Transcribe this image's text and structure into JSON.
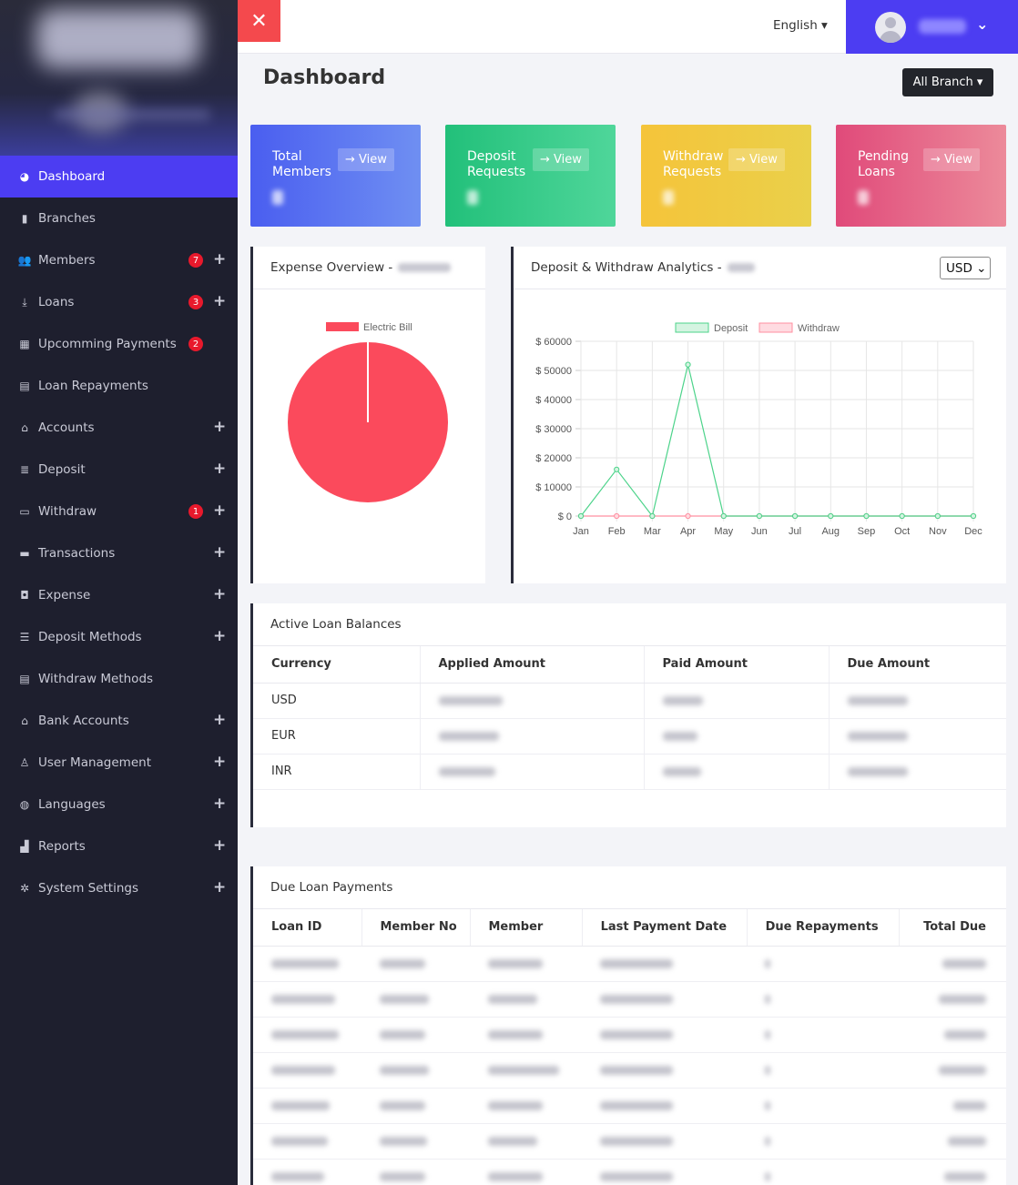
{
  "sidebar": {
    "items": [
      {
        "label": "Dashboard",
        "icon": "dashboard-icon",
        "badge": "",
        "plus": false,
        "active": true
      },
      {
        "label": "Branches",
        "icon": "building-icon",
        "badge": "",
        "plus": false
      },
      {
        "label": "Members",
        "icon": "users-icon",
        "badge": "7",
        "plus": true
      },
      {
        "label": "Loans",
        "icon": "hand-coin-icon",
        "badge": "3",
        "plus": true
      },
      {
        "label": "Upcomming Payments",
        "icon": "calendar-icon",
        "badge": "2",
        "plus": false
      },
      {
        "label": "Loan Repayments",
        "icon": "receipt-icon",
        "badge": "",
        "plus": false
      },
      {
        "label": "Accounts",
        "icon": "bank-icon",
        "badge": "",
        "plus": true
      },
      {
        "label": "Deposit",
        "icon": "coins-icon",
        "badge": "",
        "plus": true
      },
      {
        "label": "Withdraw",
        "icon": "card-icon",
        "badge": "1",
        "plus": true
      },
      {
        "label": "Transactions",
        "icon": "wallet-icon",
        "badge": "",
        "plus": true
      },
      {
        "label": "Expense",
        "icon": "money-icon",
        "badge": "",
        "plus": true
      },
      {
        "label": "Deposit Methods",
        "icon": "list-icon",
        "badge": "",
        "plus": true
      },
      {
        "label": "Withdraw Methods",
        "icon": "receipt-icon",
        "badge": "",
        "plus": false
      },
      {
        "label": "Bank Accounts",
        "icon": "bank-icon",
        "badge": "",
        "plus": true
      },
      {
        "label": "User Management",
        "icon": "user-icon",
        "badge": "",
        "plus": true
      },
      {
        "label": "Languages",
        "icon": "globe-icon",
        "badge": "",
        "plus": true
      },
      {
        "label": "Reports",
        "icon": "bar-chart-icon",
        "badge": "",
        "plus": true
      },
      {
        "label": "System Settings",
        "icon": "gear-icon",
        "badge": "",
        "plus": true
      }
    ],
    "plus_symbol": "+"
  },
  "header": {
    "close_symbol": "✕",
    "language": "English ▾",
    "user_chevron": "⌄"
  },
  "page": {
    "title": "Dashboard",
    "branch_button": "All Branch ▾"
  },
  "cards": [
    {
      "label": "Total Members",
      "view": "→ View",
      "color_from": "#4a5ef0",
      "color_to": "#6f8ff2"
    },
    {
      "label": "Deposit Requests",
      "view": "→ View",
      "color_from": "#22c07a",
      "color_to": "#4fd69a"
    },
    {
      "label": "Withdraw Requests",
      "view": "→ View",
      "color_from": "#f5c43a",
      "color_to": "#ead04a"
    },
    {
      "label": "Pending Loans",
      "view": "→ View",
      "color_from": "#e04a7a",
      "color_to": "#ec8a9a"
    }
  ],
  "expense_panel": {
    "title": "Expense Overview -",
    "legend": "Electric Bill",
    "color": "#fb4a5c"
  },
  "analytics_panel": {
    "title": "Deposit & Withdraw Analytics -",
    "currency": "USD ⌄"
  },
  "chart_data": [
    {
      "type": "pie",
      "title": "Expense Overview",
      "labels": [
        "Electric Bill"
      ],
      "values": [
        100
      ],
      "colors": [
        "#fb4a5c"
      ]
    },
    {
      "type": "line",
      "title": "Deposit & Withdraw Analytics",
      "categories": [
        "Jan",
        "Feb",
        "Mar",
        "Apr",
        "May",
        "Jun",
        "Jul",
        "Aug",
        "Sep",
        "Oct",
        "Nov",
        "Dec"
      ],
      "series": [
        {
          "name": "Deposit",
          "values": [
            0,
            16000,
            0,
            52000,
            0,
            0,
            0,
            0,
            0,
            0,
            0,
            0
          ],
          "color": "#4cd38a"
        },
        {
          "name": "Withdraw",
          "values": [
            0,
            0,
            0,
            0,
            0,
            0,
            0,
            0,
            0,
            0,
            0,
            0
          ],
          "color": "#ff8fa0"
        }
      ],
      "yticks": [
        "$ 0",
        "$ 10000",
        "$ 20000",
        "$ 30000",
        "$ 40000",
        "$ 50000",
        "$ 60000"
      ],
      "ylim": [
        0,
        60000
      ],
      "legend": "top"
    }
  ],
  "loan_balances": {
    "title": "Active Loan Balances",
    "columns": [
      "Currency",
      "Applied Amount",
      "Paid Amount",
      "Due Amount"
    ],
    "rows": [
      {
        "currency": "USD"
      },
      {
        "currency": "EUR"
      },
      {
        "currency": "INR"
      }
    ]
  },
  "due_payments": {
    "title": "Due Loan Payments",
    "columns": [
      "Loan ID",
      "Member No",
      "Member",
      "Last Payment Date",
      "Due Repayments",
      "Total Due"
    ],
    "row_count": 7
  }
}
